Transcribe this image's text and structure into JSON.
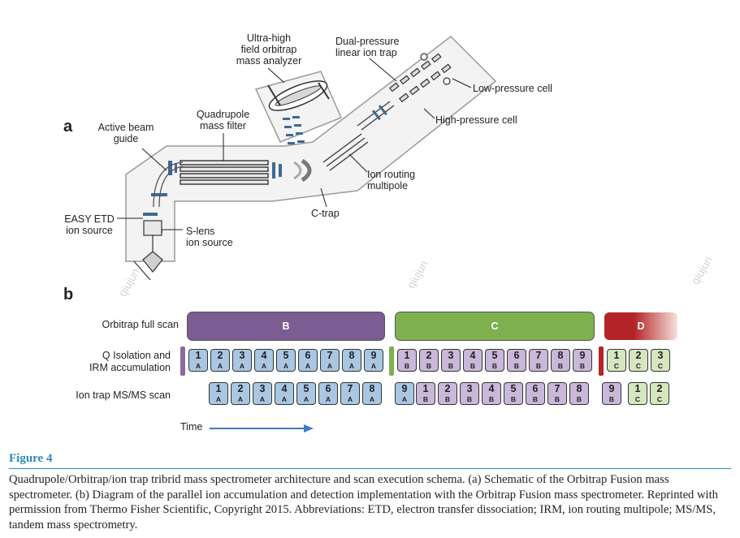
{
  "panel_a": {
    "letter": "a",
    "labels": {
      "orbitrap": [
        "Ultra-high",
        "field orbitrap",
        "mass analyzer"
      ],
      "linear_trap": [
        "Dual-pressure",
        "linear ion trap"
      ],
      "low_pressure": "Low-pressure cell",
      "high_pressure": "High-pressure cell",
      "quadrupole": [
        "Quadrupole",
        "mass filter"
      ],
      "beam_guide": [
        "Active beam",
        "guide"
      ],
      "ion_routing": [
        "Ion routing",
        "multipole"
      ],
      "ctrap": "C-trap",
      "easy_etd": [
        "EASY ETD",
        "ion source"
      ],
      "slens": [
        "S-lens",
        "ion source"
      ]
    }
  },
  "panel_b": {
    "letter": "b",
    "rows": [
      "Orbitrap full scan",
      "Q Isolation and\nIRM accumulation",
      "Ion trap MS/MS scan"
    ],
    "scans": [
      {
        "label": "B",
        "color": "#7b5c93"
      },
      {
        "label": "C",
        "color": "#7fb04f"
      },
      {
        "label": "D",
        "color": "#b42325"
      }
    ],
    "iso_row": {
      "groups": [
        {
          "sep_color": "#8b6aa4",
          "numbers": [
            "1",
            "2",
            "3",
            "4",
            "5",
            "6",
            "7",
            "8",
            "9"
          ],
          "sub": "A",
          "fill": "#a9c7e3"
        },
        {
          "sep_color": "#7fb04f",
          "numbers": [
            "1",
            "2",
            "3",
            "4",
            "5",
            "6",
            "7",
            "8",
            "9"
          ],
          "sub": "B",
          "fill": "#c9b8d9"
        },
        {
          "sep_color": "#b42325",
          "numbers": [
            "1",
            "2",
            "3"
          ],
          "sub": "C",
          "fill": "#d5e7bf"
        }
      ]
    },
    "ms2_row": {
      "groups": [
        {
          "numbers": [
            "1",
            "2",
            "3",
            "4",
            "5",
            "6",
            "7",
            "8"
          ],
          "sub": "A",
          "fill": "#a9c7e3"
        },
        {
          "numbers": [
            "9"
          ],
          "sub": "A",
          "fill": "#a9c7e3"
        },
        {
          "numbers": [
            "1",
            "2",
            "3",
            "4",
            "5",
            "6",
            "7",
            "8"
          ],
          "sub": "B",
          "fill": "#c9b8d9"
        },
        {
          "numbers": [
            "9"
          ],
          "sub": "B",
          "fill": "#c9b8d9"
        },
        {
          "numbers": [
            "1",
            "2"
          ],
          "sub": "C",
          "fill": "#d5e7bf"
        }
      ]
    },
    "time_label": "Time"
  },
  "watermarks": [
    "qiujun",
    "qiujun",
    "qiujun"
  ],
  "figure": {
    "title": "Figure 4",
    "caption": "Quadrupole/Orbitrap/ion trap tribrid mass spectrometer architecture and scan execution schema. (a) Schematic of the Orbitrap Fusion mass spectrometer. (b) Diagram of the parallel ion accumulation and detection implementation with the Orbitrap Fusion mass spectrometer. Reprinted with permission from Thermo Fisher Scientific, Copyright 2015. Abbreviations: ETD, electron transfer dissociation; IRM, ion routing multipole; MS/MS, tandem mass spectrometry.",
    "accent_color": "#2a8bb5"
  }
}
